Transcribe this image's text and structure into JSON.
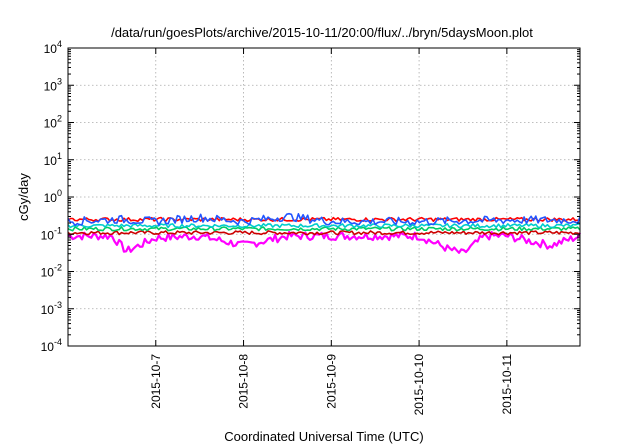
{
  "chart_data": {
    "type": "line",
    "title": "/data/run/goesPlots/archive/2015-10-11/20:00/flux/../bryn/5daysMoon.plot",
    "xlabel": "Coordinated Universal Time (UTC)",
    "ylabel": "cGy/day",
    "yscale": "log",
    "ylim": [
      0.0001,
      10000
    ],
    "xlim": [
      "2015-10-06T00:00",
      "2015-10-11T20:00"
    ],
    "grid": true,
    "y_ticks": [
      {
        "base": "10",
        "exp": "-4",
        "value": 0.0001
      },
      {
        "base": "10",
        "exp": "-3",
        "value": 0.001
      },
      {
        "base": "10",
        "exp": "-2",
        "value": 0.01
      },
      {
        "base": "10",
        "exp": "-1",
        "value": 0.1
      },
      {
        "base": "10",
        "exp": "0",
        "value": 1
      },
      {
        "base": "10",
        "exp": "1",
        "value": 10
      },
      {
        "base": "10",
        "exp": "2",
        "value": 100
      },
      {
        "base": "10",
        "exp": "3",
        "value": 1000
      },
      {
        "base": "10",
        "exp": "4",
        "value": 10000
      }
    ],
    "x_ticks": [
      {
        "label": "2015-10-7",
        "value": "2015-10-07T00:00"
      },
      {
        "label": "2015-10-8",
        "value": "2015-10-08T00:00"
      },
      {
        "label": "2015-10-9",
        "value": "2015-10-09T00:00"
      },
      {
        "label": "2015-10-10",
        "value": "2015-10-10T00:00"
      },
      {
        "label": "2015-10-11",
        "value": "2015-10-11T00:00"
      }
    ],
    "series": [
      {
        "color": "#ff00ff",
        "x": [
          "2015-10-06T00:00",
          "2015-10-06T12:00",
          "2015-10-06T16:00",
          "2015-10-07T00:00",
          "2015-10-07T12:00",
          "2015-10-08T00:00",
          "2015-10-08T12:00",
          "2015-10-09T00:00",
          "2015-10-09T12:00",
          "2015-10-10T00:00",
          "2015-10-10T08:00",
          "2015-10-10T12:00",
          "2015-10-10T18:00",
          "2015-10-11T00:00",
          "2015-10-11T12:00",
          "2015-10-11T20:00"
        ],
        "y": [
          0.09,
          0.09,
          0.035,
          0.08,
          0.09,
          0.05,
          0.09,
          0.09,
          0.09,
          0.09,
          0.04,
          0.03,
          0.09,
          0.09,
          0.05,
          0.09
        ]
      },
      {
        "color": "#cc0000",
        "x": [
          "2015-10-06T00:00",
          "2015-10-07T00:00",
          "2015-10-08T00:00",
          "2015-10-09T00:00",
          "2015-10-10T00:00",
          "2015-10-11T00:00",
          "2015-10-11T20:00"
        ],
        "y": [
          0.11,
          0.11,
          0.11,
          0.11,
          0.11,
          0.11,
          0.11
        ]
      },
      {
        "color": "#00cc66",
        "x": [
          "2015-10-06T00:00",
          "2015-10-07T00:00",
          "2015-10-08T00:00",
          "2015-10-09T00:00",
          "2015-10-10T00:00",
          "2015-10-11T00:00",
          "2015-10-11T20:00"
        ],
        "y": [
          0.14,
          0.14,
          0.14,
          0.14,
          0.14,
          0.14,
          0.14
        ]
      },
      {
        "color": "#00cccc",
        "x": [
          "2015-10-06T00:00",
          "2015-10-07T00:00",
          "2015-10-08T00:00",
          "2015-10-09T00:00",
          "2015-10-10T00:00",
          "2015-10-11T00:00",
          "2015-10-11T20:00"
        ],
        "y": [
          0.17,
          0.17,
          0.17,
          0.17,
          0.17,
          0.17,
          0.17
        ]
      },
      {
        "color": "#ff0000",
        "x": [
          "2015-10-06T00:00",
          "2015-10-07T00:00",
          "2015-10-08T00:00",
          "2015-10-09T00:00",
          "2015-10-10T00:00",
          "2015-10-11T00:00",
          "2015-10-11T20:00"
        ],
        "y": [
          0.25,
          0.25,
          0.25,
          0.25,
          0.25,
          0.25,
          0.25
        ]
      },
      {
        "color": "#2255ff",
        "x": [
          "2015-10-06T00:00",
          "2015-10-06T14:00",
          "2015-10-07T00:00",
          "2015-10-07T12:00",
          "2015-10-08T00:00",
          "2015-10-08T12:00",
          "2015-10-09T00:00",
          "2015-10-10T00:00",
          "2015-10-11T00:00",
          "2015-10-11T20:00"
        ],
        "y": [
          0.22,
          0.25,
          0.22,
          0.28,
          0.22,
          0.3,
          0.22,
          0.22,
          0.24,
          0.24
        ]
      }
    ]
  }
}
